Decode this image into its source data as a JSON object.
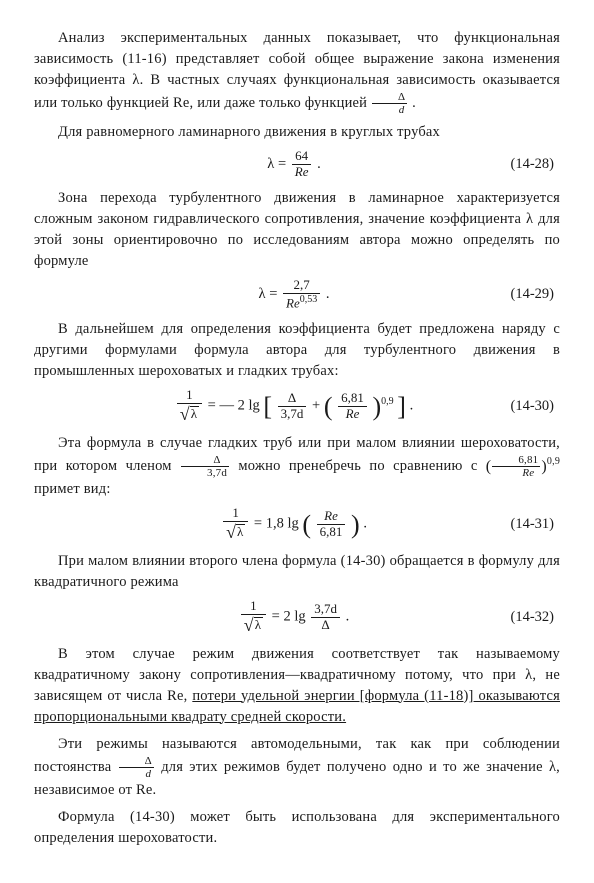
{
  "paragraphs": {
    "p1": "Анализ экспериментальных данных показывает, что функциональная зависимость (11-16) представляет собой общее выражение закона изменения коэффициента λ. В частных случаях функциональная зависимость оказывается или только функцией Re, или даже только функцией ",
    "p1_tail": " .",
    "p2": "Для равномерного ламинарного движения в круглых трубах",
    "p3": "Зона перехода турбулентного движения в ламинарное характеризуется сложным законом гидравлического сопротивления, значение коэффициента λ для этой зоны ориентировочно по исследованиям автора можно определять по формуле",
    "p4": "В дальнейшем для определения коэффициента будет предложена наряду с другими формулами формула автора для турбулентного движения в промышленных шероховатых и гладких трубах:",
    "p5a": "Эта формула в случае гладких труб или при малом влиянии шероховатости, при котором членом ",
    "p5b": " можно пренебречь по сравнению с ",
    "p5c": " примет вид:",
    "p6": "При малом влиянии второго члена формула (14-30) обращается в формулу для квадратичного режима",
    "p7a": "В этом случае режим движения соответствует так называемому квадратичному закону сопротивления—квадратичному потому, что при λ, не зависящем от числа Re, ",
    "p7b": "потери удельной энергии [формула (11-18)] оказываются пропорциональными квадрату средней скорости.",
    "p8a": "Эти режимы называются автомодельными, так как при соблюдении постоянства ",
    "p8b": " для этих режимов будет получено одно и то же значение λ, независимое от Re.",
    "p9": "Формула (14-30) может быть использована для экспериментального определения шероховатости."
  },
  "equations": {
    "e28": {
      "num": "(14-28)",
      "lhs": "λ",
      "rhs_num": "64",
      "rhs_den": "Re"
    },
    "e29": {
      "num": "(14-29)",
      "lhs": "λ",
      "rhs_num": "2,7",
      "rhs_den": "Re",
      "exp": "0,53"
    },
    "e30": {
      "num": "(14-30)",
      "coef": "— 2 lg",
      "t1_num": "Δ",
      "t1_den": "3,7d",
      "t2_num": "6,81",
      "t2_den": "Re",
      "exp": "0,9"
    },
    "e31": {
      "num": "(14-31)",
      "coef": "1,8 lg",
      "inner_num": "Re",
      "inner_den": "6,81"
    },
    "e32": {
      "num": "(14-32)",
      "coef": "2 lg",
      "inner_num": "3,7d",
      "inner_den": "Δ"
    }
  },
  "inline": {
    "delta_over_d_num": "Δ",
    "delta_over_d_den": "d",
    "delta_over_37d_num": "Δ",
    "delta_over_37d_den": "3,7d",
    "p5_paren_num": "6,81",
    "p5_paren_den": "Re",
    "p5_paren_exp": "0,9",
    "one": "1",
    "sqrt_lambda": "λ",
    "eq_sign": "="
  }
}
